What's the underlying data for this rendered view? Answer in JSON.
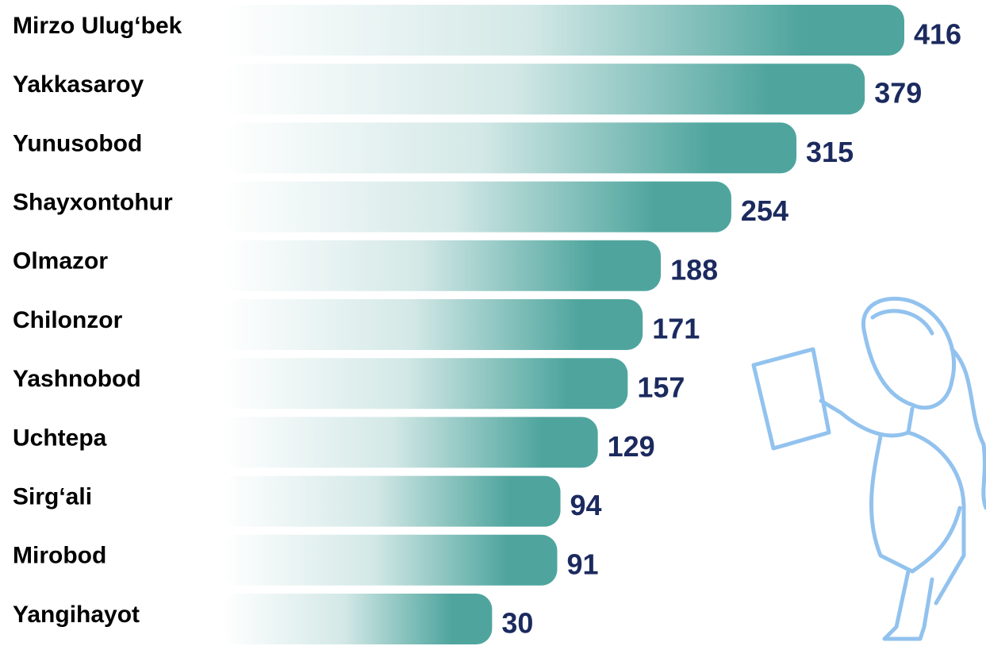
{
  "chart_data": {
    "type": "bar",
    "orientation": "horizontal",
    "categories": [
      "Mirzo Ulug‘bek",
      "Yakkasaroy",
      "Yunusobod",
      "Shayxontohur",
      "Olmazor",
      "Chilonzor",
      "Yashnobod",
      "Uchtepa",
      "Sirg‘ali",
      "Mirobod",
      "Yangihayot"
    ],
    "values": [
      416,
      379,
      315,
      254,
      188,
      171,
      157,
      129,
      94,
      91,
      30
    ],
    "color": "#4fa59e"
  }
}
